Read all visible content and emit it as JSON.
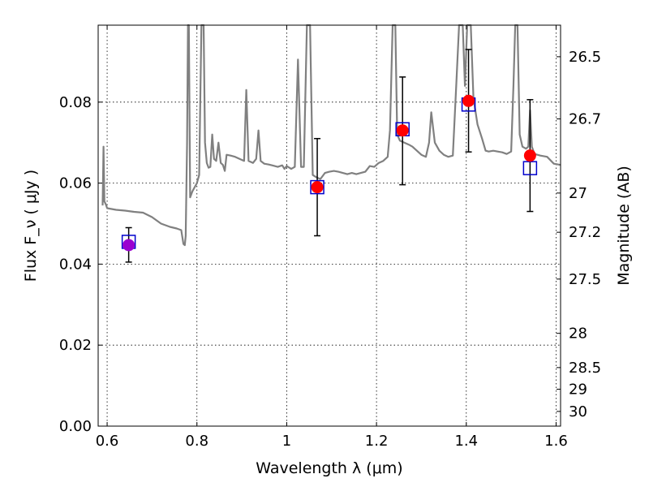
{
  "chart_data": {
    "type": "scatter",
    "xlabel": "Wavelength  λ (μm)",
    "ylabel": "Flux  F_ν  ( μJy )",
    "y2label": "Magnitude (AB)",
    "xlim": [
      0.58,
      1.61
    ],
    "ylim": [
      0.0,
      0.099
    ],
    "grid": true,
    "x_ticks": [
      0.6,
      0.8,
      1.0,
      1.2,
      1.4,
      1.6
    ],
    "x_tick_labels": [
      "0.6",
      "0.8",
      "1",
      "1.2",
      "1.4",
      "1.6"
    ],
    "y_ticks": [
      0.0,
      0.02,
      0.04,
      0.06,
      0.08
    ],
    "y_tick_labels": [
      "0.00",
      "0.02",
      "0.04",
      "0.06",
      "0.08"
    ],
    "y2_ticks": [
      26.5,
      26.7,
      27.0,
      27.2,
      27.5,
      28.0,
      28.5,
      29.0,
      30.0
    ],
    "y2_tick_labels": [
      "26.5",
      "26.7",
      "27",
      "27.2",
      "27.5",
      "28",
      "28.5",
      "29",
      "30"
    ],
    "colors": {
      "model": "#808080",
      "observed": "#ff0000",
      "observed_first": "#9a00d0",
      "synthetic": "#0000cc",
      "errorbar": "#000000"
    },
    "model_spectrum": {
      "name": "",
      "points": [
        [
          0.59,
          0.0545
        ],
        [
          0.592,
          0.069
        ],
        [
          0.594,
          0.0555
        ],
        [
          0.597,
          0.0548
        ],
        [
          0.6,
          0.0538
        ],
        [
          0.62,
          0.0534
        ],
        [
          0.64,
          0.0532
        ],
        [
          0.66,
          0.0529
        ],
        [
          0.68,
          0.0527
        ],
        [
          0.7,
          0.0516
        ],
        [
          0.72,
          0.05
        ],
        [
          0.74,
          0.0492
        ],
        [
          0.755,
          0.0488
        ],
        [
          0.765,
          0.0484
        ],
        [
          0.77,
          0.045
        ],
        [
          0.773,
          0.0447
        ],
        [
          0.775,
          0.047
        ],
        [
          0.778,
          0.07
        ],
        [
          0.78,
          0.099
        ],
        [
          0.782,
          0.099
        ],
        [
          0.785,
          0.0565
        ],
        [
          0.79,
          0.058
        ],
        [
          0.8,
          0.06
        ],
        [
          0.805,
          0.062
        ],
        [
          0.81,
          0.099
        ],
        [
          0.815,
          0.099
        ],
        [
          0.818,
          0.07
        ],
        [
          0.822,
          0.065
        ],
        [
          0.826,
          0.0638
        ],
        [
          0.83,
          0.064
        ],
        [
          0.834,
          0.072
        ],
        [
          0.838,
          0.066
        ],
        [
          0.843,
          0.0655
        ],
        [
          0.848,
          0.07
        ],
        [
          0.853,
          0.065
        ],
        [
          0.858,
          0.0645
        ],
        [
          0.862,
          0.063
        ],
        [
          0.866,
          0.067
        ],
        [
          0.875,
          0.0668
        ],
        [
          0.885,
          0.0665
        ],
        [
          0.895,
          0.066
        ],
        [
          0.905,
          0.0655
        ],
        [
          0.91,
          0.083
        ],
        [
          0.915,
          0.0655
        ],
        [
          0.925,
          0.065
        ],
        [
          0.932,
          0.066
        ],
        [
          0.937,
          0.073
        ],
        [
          0.942,
          0.0655
        ],
        [
          0.95,
          0.0648
        ],
        [
          0.96,
          0.0646
        ],
        [
          0.97,
          0.0643
        ],
        [
          0.98,
          0.064
        ],
        [
          0.99,
          0.0644
        ],
        [
          0.995,
          0.0635
        ],
        [
          1.0,
          0.0642
        ],
        [
          1.01,
          0.0635
        ],
        [
          1.018,
          0.064
        ],
        [
          1.025,
          0.0905
        ],
        [
          1.032,
          0.064
        ],
        [
          1.038,
          0.064
        ],
        [
          1.045,
          0.099
        ],
        [
          1.052,
          0.099
        ],
        [
          1.058,
          0.062
        ],
        [
          1.065,
          0.0615
        ],
        [
          1.075,
          0.061
        ],
        [
          1.085,
          0.0625
        ],
        [
          1.095,
          0.0628
        ],
        [
          1.105,
          0.063
        ],
        [
          1.115,
          0.0628
        ],
        [
          1.125,
          0.0625
        ],
        [
          1.135,
          0.0622
        ],
        [
          1.145,
          0.0625
        ],
        [
          1.155,
          0.0622
        ],
        [
          1.165,
          0.0625
        ],
        [
          1.175,
          0.0628
        ],
        [
          1.185,
          0.0642
        ],
        [
          1.195,
          0.064
        ],
        [
          1.205,
          0.065
        ],
        [
          1.215,
          0.0655
        ],
        [
          1.225,
          0.0665
        ],
        [
          1.23,
          0.073
        ],
        [
          1.236,
          0.099
        ],
        [
          1.242,
          0.099
        ],
        [
          1.246,
          0.072
        ],
        [
          1.252,
          0.0705
        ],
        [
          1.262,
          0.07
        ],
        [
          1.272,
          0.0695
        ],
        [
          1.28,
          0.069
        ],
        [
          1.29,
          0.068
        ],
        [
          1.3,
          0.067
        ],
        [
          1.31,
          0.0665
        ],
        [
          1.317,
          0.07
        ],
        [
          1.322,
          0.0775
        ],
        [
          1.33,
          0.07
        ],
        [
          1.34,
          0.068
        ],
        [
          1.35,
          0.067
        ],
        [
          1.36,
          0.0665
        ],
        [
          1.37,
          0.0668
        ],
        [
          1.378,
          0.085
        ],
        [
          1.384,
          0.099
        ],
        [
          1.392,
          0.099
        ],
        [
          1.397,
          0.084
        ],
        [
          1.402,
          0.099
        ],
        [
          1.41,
          0.099
        ],
        [
          1.416,
          0.081
        ],
        [
          1.425,
          0.0745
        ],
        [
          1.435,
          0.071
        ],
        [
          1.443,
          0.068
        ],
        [
          1.45,
          0.0678
        ],
        [
          1.46,
          0.068
        ],
        [
          1.47,
          0.0678
        ],
        [
          1.48,
          0.0676
        ],
        [
          1.49,
          0.0672
        ],
        [
          1.5,
          0.0678
        ],
        [
          1.505,
          0.084
        ],
        [
          1.509,
          0.099
        ],
        [
          1.514,
          0.099
        ],
        [
          1.519,
          0.072
        ],
        [
          1.525,
          0.069
        ],
        [
          1.533,
          0.0685
        ],
        [
          1.538,
          0.069
        ],
        [
          1.542,
          0.078
        ],
        [
          1.546,
          0.069
        ],
        [
          1.552,
          0.0672
        ],
        [
          1.565,
          0.0668
        ],
        [
          1.58,
          0.0665
        ],
        [
          1.595,
          0.0648
        ],
        [
          1.61,
          0.0645
        ]
      ]
    },
    "observed_points": [
      {
        "x": 0.648,
        "y": 0.0447,
        "yerr_low": 0.0405,
        "yerr_high": 0.049
      },
      {
        "x": 1.068,
        "y": 0.059,
        "yerr_low": 0.047,
        "yerr_high": 0.071
      },
      {
        "x": 1.258,
        "y": 0.073,
        "yerr_low": 0.0596,
        "yerr_high": 0.0862
      },
      {
        "x": 1.405,
        "y": 0.0803,
        "yerr_low": 0.0677,
        "yerr_high": 0.093
      },
      {
        "x": 1.542,
        "y": 0.0668,
        "yerr_low": 0.053,
        "yerr_high": 0.0806
      }
    ],
    "synthetic_points": [
      {
        "x": 0.648,
        "y": 0.0455
      },
      {
        "x": 1.068,
        "y": 0.059
      },
      {
        "x": 1.258,
        "y": 0.0733
      },
      {
        "x": 1.405,
        "y": 0.0794
      },
      {
        "x": 1.542,
        "y": 0.0637
      }
    ]
  }
}
